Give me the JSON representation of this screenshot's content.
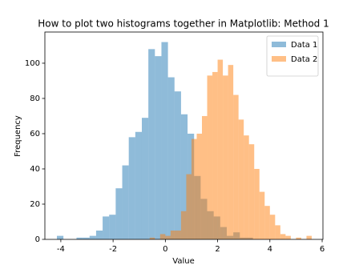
{
  "chart_data": {
    "type": "histogram",
    "title": "How to plot two histograms together in Matplotlib: Method 1",
    "x_label": "Value",
    "y_label": "Frequency",
    "xlim": [
      -4.61,
      6.03
    ],
    "ylim": [
      0,
      117.7
    ],
    "xticks": [
      -4,
      -2,
      0,
      2,
      4,
      6
    ],
    "yticks": [
      0,
      20,
      40,
      60,
      80,
      100
    ],
    "legend": "upper right",
    "alpha": 0.5,
    "series": [
      {
        "name": "Data 1",
        "color": "#1f77b4",
        "bins": [
          -4.15,
          -3.9,
          -3.65,
          -3.4,
          -3.15,
          -2.9,
          -2.65,
          -2.4,
          -2.15,
          -1.9,
          -1.65,
          -1.4,
          -1.15,
          -0.9,
          -0.65,
          -0.4,
          -0.15,
          0.1,
          0.35,
          0.6,
          0.85,
          1.1,
          1.35,
          1.6,
          1.85,
          2.1,
          2.35,
          2.6,
          2.85,
          3.1,
          3.35
        ],
        "values": [
          2,
          0,
          0,
          1,
          1,
          2,
          5,
          13,
          14,
          29,
          42,
          58,
          61,
          69,
          108,
          104,
          112,
          92,
          84,
          71,
          60,
          36,
          23,
          16,
          13,
          7,
          2,
          4,
          1,
          1
        ]
      },
      {
        "name": "Data 2",
        "color": "#ff7f0e",
        "bins": [
          -0.6,
          -0.4,
          -0.2,
          0,
          0.2,
          0.4,
          0.6,
          0.8,
          1.0,
          1.2,
          1.4,
          1.6,
          1.8,
          2.0,
          2.2,
          2.4,
          2.6,
          2.8,
          3.0,
          3.2,
          3.4,
          3.6,
          3.8,
          4.0,
          4.2,
          4.4,
          4.6,
          4.8,
          5.0,
          5.2,
          5.4,
          5.6
        ],
        "values": [
          1,
          0,
          3,
          2,
          5,
          5,
          16,
          37,
          57,
          60,
          70,
          93,
          95,
          102,
          93,
          99,
          82,
          68,
          59,
          54,
          40,
          27,
          19,
          14,
          8,
          3,
          2,
          0,
          1,
          0,
          2
        ]
      }
    ]
  }
}
